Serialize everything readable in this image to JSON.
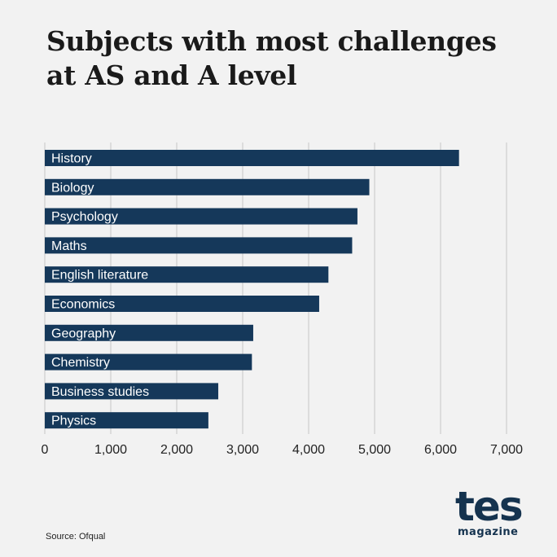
{
  "title": "Subjects with most challenges\nat AS and A level",
  "source": "Source: Ofqual",
  "logo": {
    "word": "tes",
    "sub": "magazine"
  },
  "colors": {
    "bar": "#15385a",
    "background": "#f2f2f2",
    "grid": "#c6c6c6",
    "bar_label": "#ffffff"
  },
  "chart_data": {
    "type": "bar",
    "orientation": "horizontal",
    "title": "Subjects with most challenges at AS and A level",
    "categories": [
      "History",
      "Biology",
      "Psychology",
      "Maths",
      "English literature",
      "Economics",
      "Geography",
      "Chemistry",
      "Business studies",
      "Physics"
    ],
    "values": [
      6280,
      4920,
      4740,
      4660,
      4300,
      4160,
      3160,
      3140,
      2630,
      2480
    ],
    "xlim": [
      0,
      7000
    ],
    "xticks": [
      0,
      1000,
      2000,
      3000,
      4000,
      5000,
      6000,
      7000
    ],
    "xtick_labels": [
      "0",
      "1,000",
      "2,000",
      "3,000",
      "4,000",
      "5,000",
      "6,000",
      "7,000"
    ],
    "grid": true,
    "legend": "none"
  }
}
